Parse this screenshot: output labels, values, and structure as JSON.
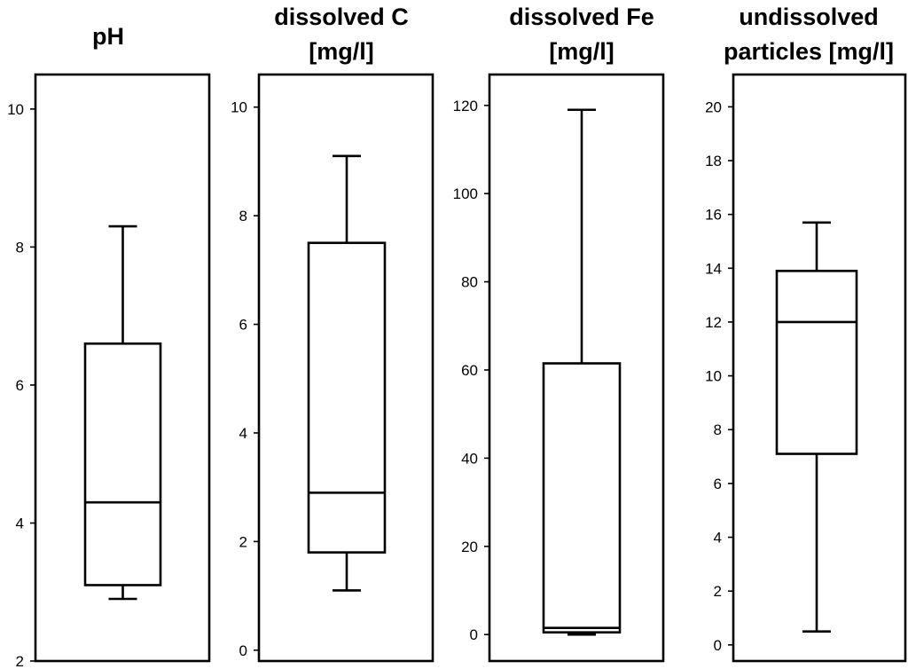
{
  "chart_data": [
    {
      "type": "box",
      "title": [
        "pH"
      ],
      "ylim": [
        2,
        10.5
      ],
      "yticks": [
        2,
        4,
        6,
        8,
        10
      ],
      "box": {
        "whisker_low": 2.9,
        "q1": 3.1,
        "median": 4.3,
        "q3": 6.6,
        "whisker_high": 8.3
      }
    },
    {
      "type": "box",
      "title": [
        "dissolved C",
        "[mg/l]"
      ],
      "ylim": [
        -0.2,
        10.6
      ],
      "yticks": [
        0,
        2,
        4,
        6,
        8,
        10
      ],
      "box": {
        "whisker_low": 1.1,
        "q1": 1.8,
        "median": 2.9,
        "q3": 7.5,
        "whisker_high": 9.1
      }
    },
    {
      "type": "box",
      "title": [
        "dissolved Fe",
        "[mg/l]"
      ],
      "ylim": [
        -6,
        127
      ],
      "yticks": [
        0,
        20,
        40,
        60,
        80,
        100,
        120
      ],
      "box": {
        "whisker_low": 0,
        "q1": 0.5,
        "median": 1.5,
        "q3": 61.5,
        "whisker_high": 119
      }
    },
    {
      "type": "box",
      "title": [
        "undissolved",
        "particles [mg/l]"
      ],
      "ylim": [
        -0.6,
        21.2
      ],
      "yticks": [
        0,
        2,
        4,
        6,
        8,
        10,
        12,
        14,
        16,
        18,
        20
      ],
      "box": {
        "whisker_low": 0.5,
        "q1": 7.1,
        "median": 12,
        "q3": 13.9,
        "whisker_high": 15.7
      }
    }
  ]
}
